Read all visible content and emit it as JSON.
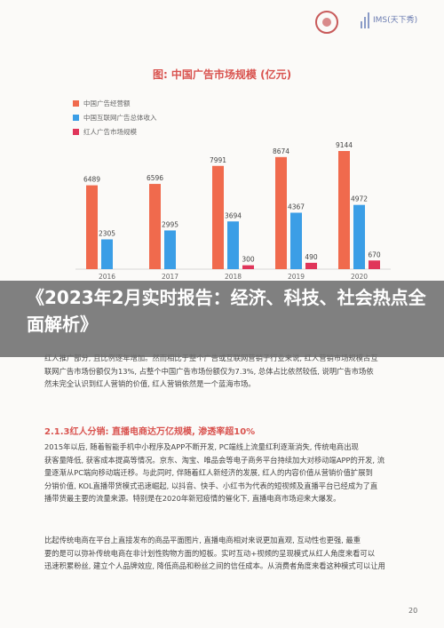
{
  "header": {
    "brand_text": "IMS(天下秀)"
  },
  "chart_data": {
    "type": "bar",
    "title": "图: 中国广告市场规模 (亿元)",
    "categories": [
      "2016",
      "2017",
      "2018",
      "2019",
      "2020"
    ],
    "series": [
      {
        "name": "中国广告经营额",
        "values": [
          6489,
          6596,
          7991,
          8674,
          9144
        ],
        "color": "#f06a4d"
      },
      {
        "name": "中国互联网广告总体收入",
        "values": [
          2305,
          2995,
          3694,
          4367,
          4972
        ],
        "color": "#3b9ee6"
      },
      {
        "name": "红人广告市场规模",
        "values": [
          null,
          null,
          300,
          490,
          670
        ],
        "color": "#e0355a"
      }
    ],
    "ylim": [
      0,
      10000
    ],
    "xlabel": "",
    "ylabel": ""
  },
  "banner": {
    "title": "《2023年2月实时报告：经济、科技、社会热点全面解析》"
  },
  "content": {
    "para1_lines": [
      "红人推广部分, 且比例逐年增加。然而相比于整个广告或互联网营销子行业来说, 红人营销市场规模占互",
      "联网广告市场份额仅为13%, 占整个中国广告市场份额仅为7.3%, 总体占比依然较低, 说明广告市场依",
      "然未完全认识到红人营销的价值, 红人营销依然是一个蓝海市场。"
    ],
    "section_title": "2.1.3红人分销: 直播电商达万亿规模, 渗透率超10%",
    "para2_lines": [
      "2015年以后, 随着智能手机中小程序及APP不断开发, PC端线上流量红利逐渐消失, 传统电商出现",
      "获客量降低, 获客成本提高等情况。京东、淘宝、唯品会等电子商务平台持续加大对移动端APP的开发, 流",
      "量逐渐从PC端向移动端迁移。与此同时, 伴随着红人新经济的发展, 红人的内容价值从营销价值扩展到",
      "分销价值, KOL直播带货模式迅速崛起, 以抖音、快手、小红书为代表的短视频及直播平台已经成为了直",
      "播带货最主要的流量来源。特别是在2020年新冠疫情的催化下, 直播电商市场迎来大爆发。"
    ],
    "para3_lines": [
      "比起传统电商在平台上直接发布的商品平面图片, 直播电商相对来说更加直观, 互动性也更强, 最重",
      "要的是可以弥补传统电商在非计划性购物方面的短板。实时互动+视频的呈现模式从红人角度来看可以",
      "迅速积累粉丝, 建立个人品牌效应, 降低商品和粉丝之间的信任成本。从消费者角度来看这种模式可以让用"
    ],
    "page_number": "20"
  }
}
